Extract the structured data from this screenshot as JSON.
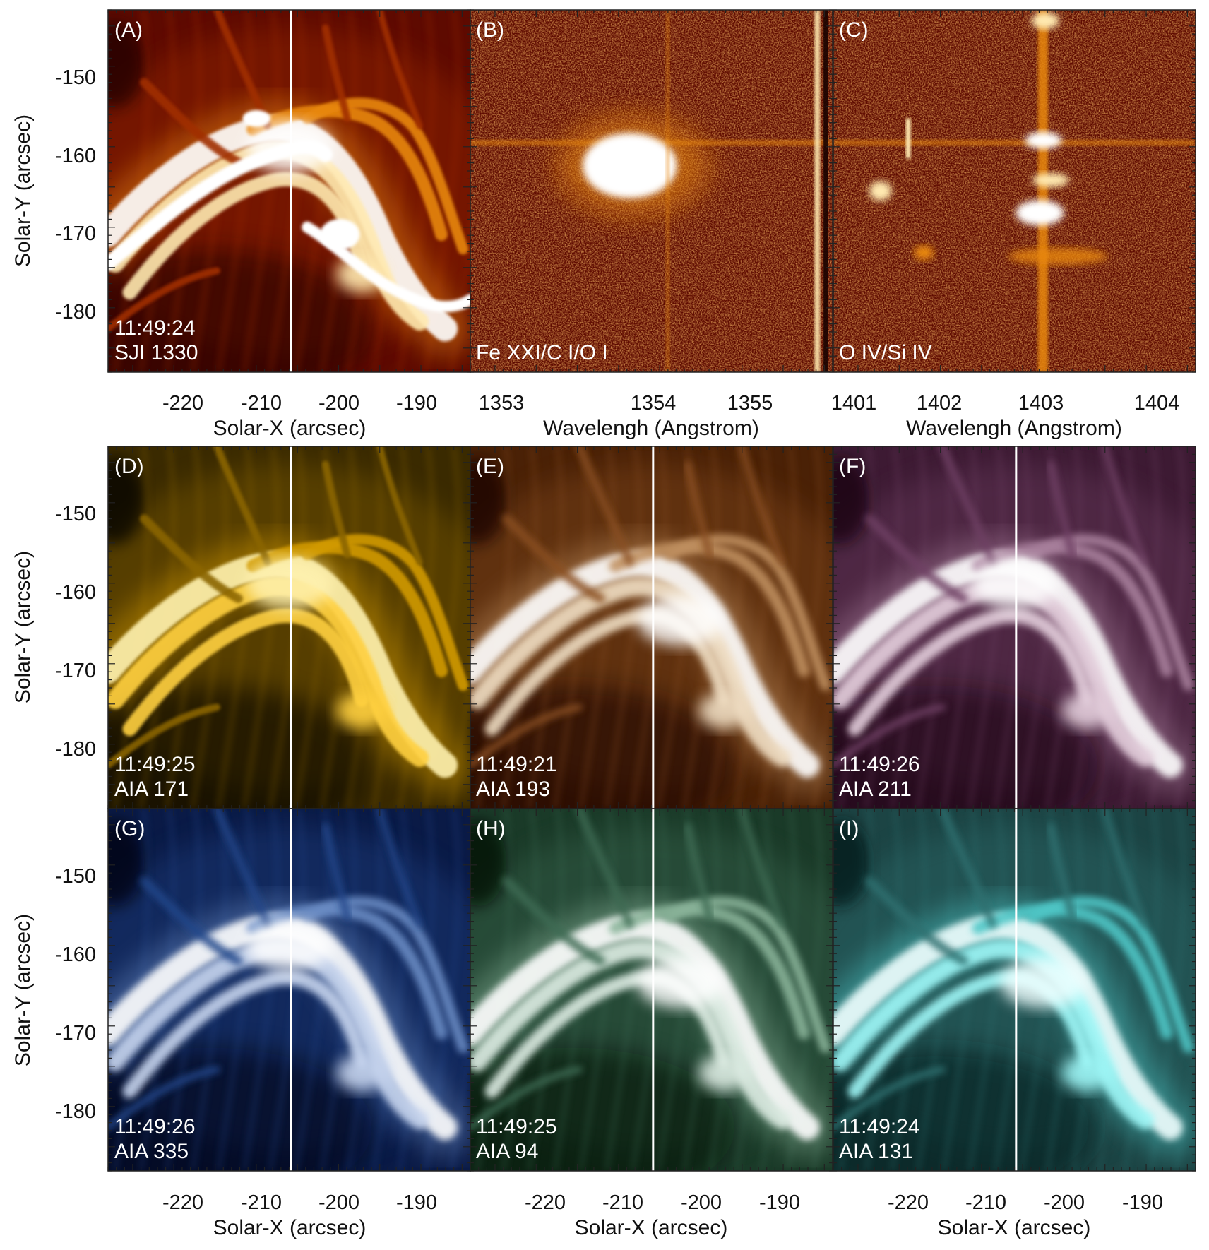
{
  "panels": [
    {
      "id": "A",
      "label": "(A)",
      "time": "11:49:24",
      "instrument": "SJI 1330",
      "kind": "sji1330",
      "palette": [
        "#1a0200",
        "#5e0a00",
        "#a02f00",
        "#e8870a",
        "#ffe9b0",
        "#ffffff"
      ],
      "slit": true
    },
    {
      "id": "B",
      "label": "(B)",
      "time": "",
      "instrument": "Fe XXI/C I/O I",
      "kind": "spec_fe",
      "palette": [
        "#1a0200",
        "#5e0a00",
        "#a02f00",
        "#e8870a",
        "#ffe9b0",
        "#ffffff"
      ],
      "slit": false
    },
    {
      "id": "C",
      "label": "(C)",
      "time": "",
      "instrument": "O IV/Si IV",
      "kind": "spec_si",
      "palette": [
        "#1a0200",
        "#5e0a00",
        "#a02f00",
        "#e8870a",
        "#ffe9b0",
        "#ffffff"
      ],
      "slit": false
    },
    {
      "id": "D",
      "label": "(D)",
      "time": "11:49:25",
      "instrument": "AIA 171",
      "kind": "aia171",
      "palette": [
        "#050300",
        "#3a2a00",
        "#8a6500",
        "#d19a05",
        "#ffd040",
        "#fff2b0"
      ],
      "slit": true
    },
    {
      "id": "E",
      "label": "(E)",
      "time": "11:49:21",
      "instrument": "AIA 193",
      "kind": "aia193",
      "palette": [
        "#140600",
        "#4a2106",
        "#8a5020",
        "#c09060",
        "#efddc2",
        "#ffffff"
      ],
      "slit": true
    },
    {
      "id": "F",
      "label": "(F)",
      "time": "11:49:26",
      "instrument": "AIA 211",
      "kind": "aia211",
      "palette": [
        "#120510",
        "#3d1a33",
        "#6e4063",
        "#a8809c",
        "#e3cedb",
        "#ffffff"
      ],
      "slit": true
    },
    {
      "id": "G",
      "label": "(G)",
      "time": "11:49:26",
      "instrument": "AIA 335",
      "kind": "aia335",
      "palette": [
        "#000008",
        "#0a1a46",
        "#23478a",
        "#6b8cc4",
        "#c6d4ee",
        "#ffffff"
      ],
      "slit": true
    },
    {
      "id": "H",
      "label": "(H)",
      "time": "11:49:25",
      "instrument": "AIA 94",
      "kind": "aia94",
      "palette": [
        "#060d06",
        "#1a3a28",
        "#3e6b52",
        "#8ab49a",
        "#dcebe2",
        "#ffffff"
      ],
      "slit": true
    },
    {
      "id": "I",
      "label": "(I)",
      "time": "11:49:24",
      "instrument": "AIA 131",
      "kind": "aia131",
      "palette": [
        "#051414",
        "#1c4444",
        "#2f7070",
        "#4fc7c7",
        "#9ff7f7",
        "#f0ffff"
      ],
      "slit": true
    }
  ],
  "axes": {
    "y_title": "Solar-Y (arcsec)",
    "y_ticks": [
      "-150",
      "-160",
      "-170",
      "-180"
    ],
    "y_range": [
      -143,
      -188
    ],
    "x_title_spatial": "Solar-X (arcsec)",
    "x_ticks_spatial": [
      "-220",
      "-210",
      "-200",
      "-190"
    ],
    "x_range_spatial": [
      -228,
      -184
    ],
    "x_title_wave": "Wavelengh (Angstrom)",
    "x_ticks_fe": [
      "1353",
      "1354",
      "1355"
    ],
    "x_range_fe": [
      1352.6,
      1355.7
    ],
    "x_ticks_si": [
      "1401",
      "1402",
      "1403",
      "1404"
    ],
    "x_range_si": [
      1400.95,
      1404.35
    ],
    "slit_x": -205.8
  }
}
